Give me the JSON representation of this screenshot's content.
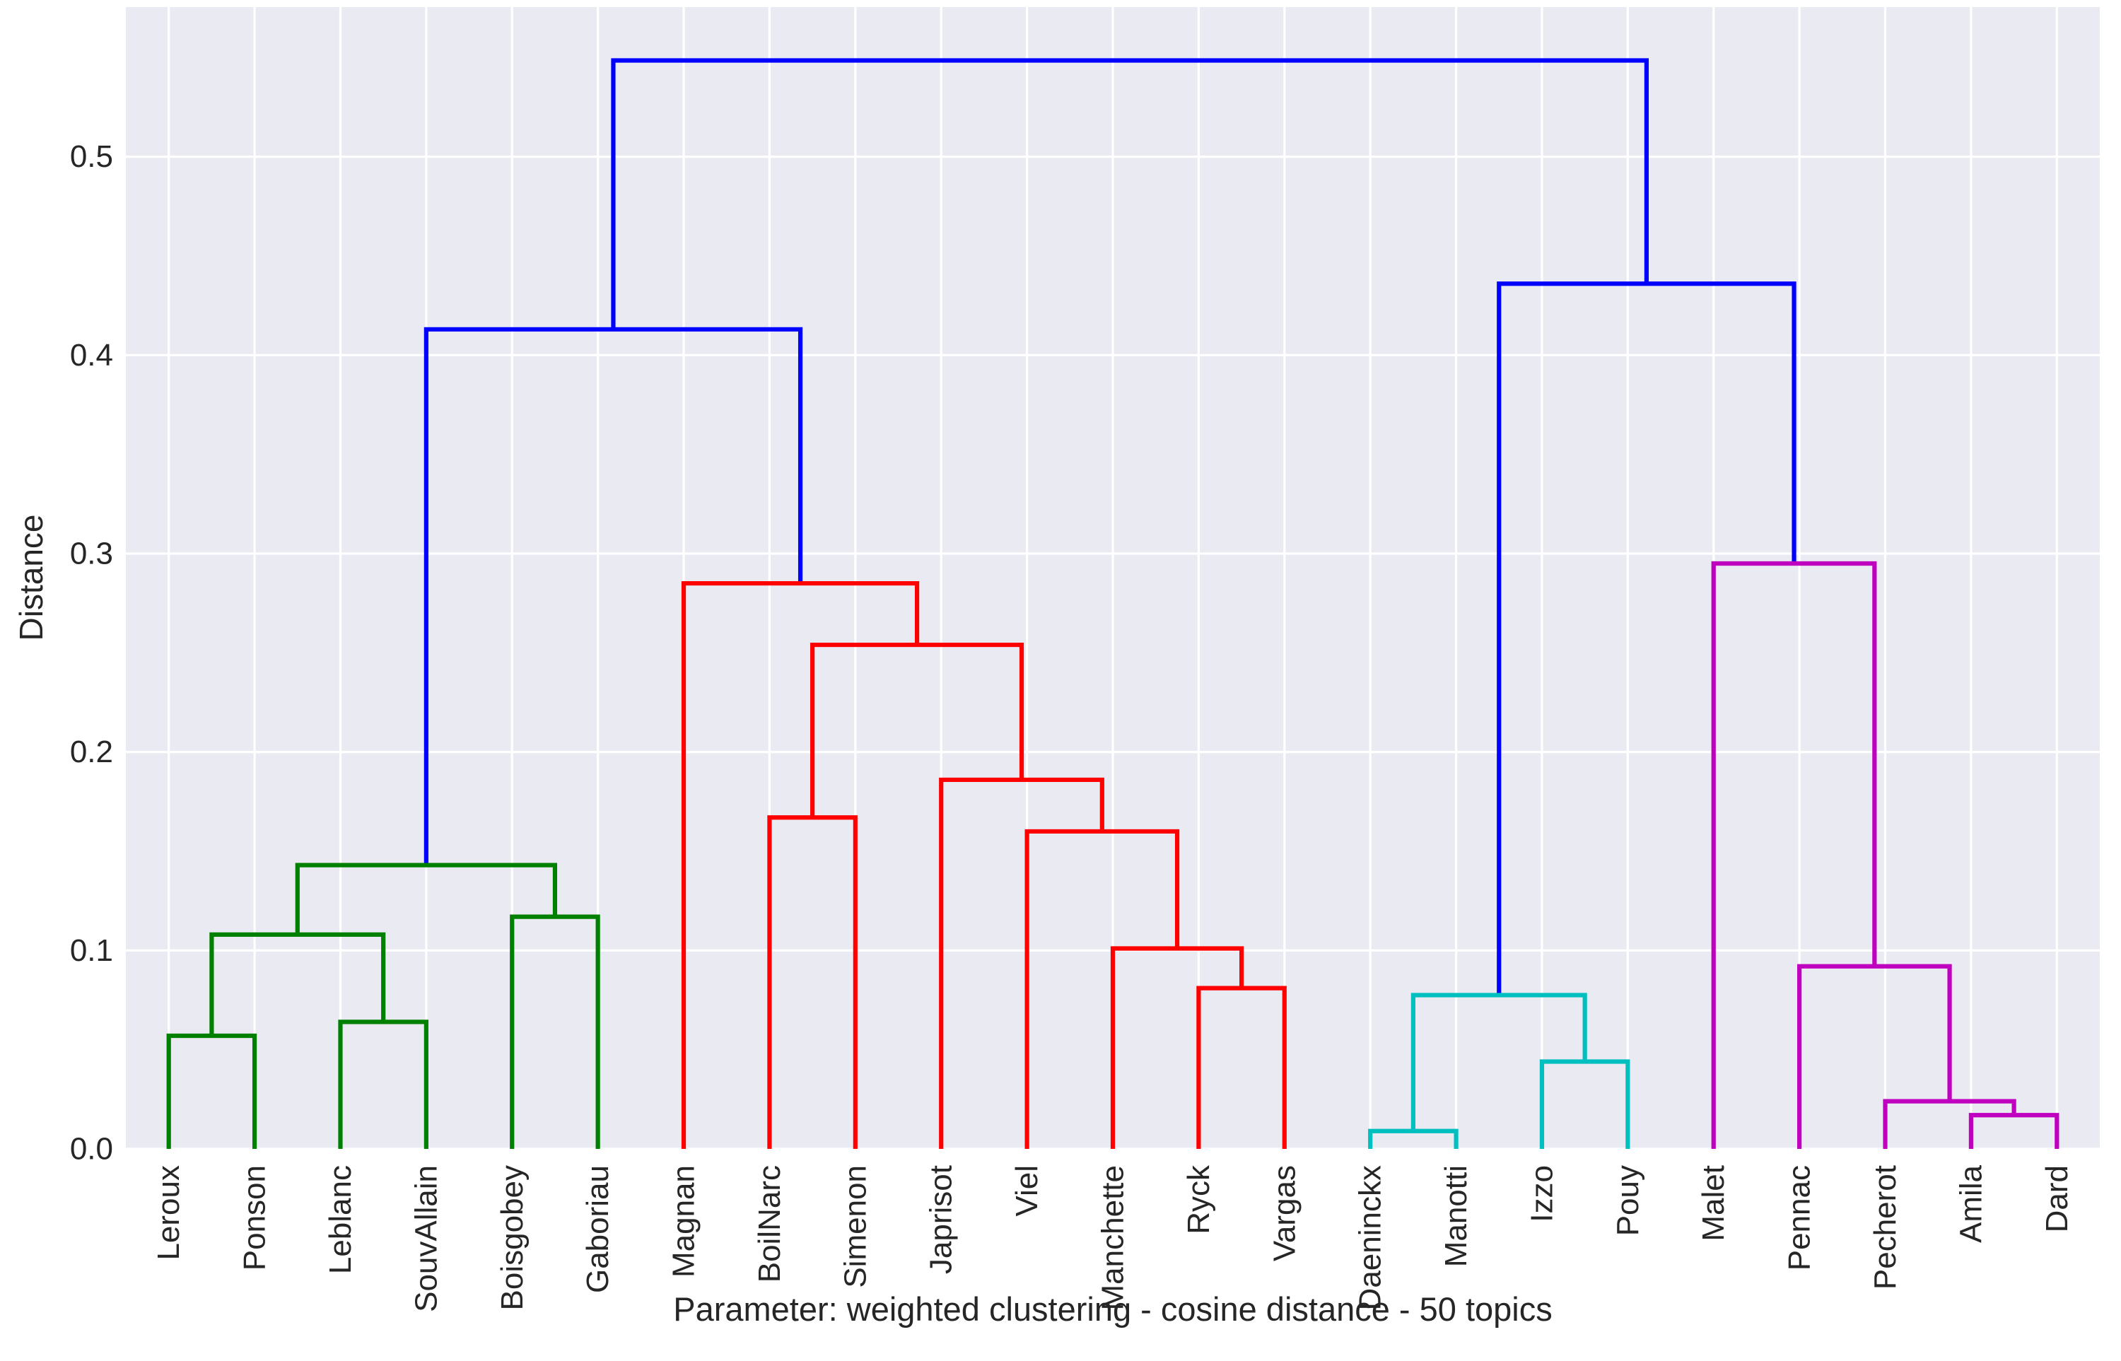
{
  "figure": {
    "plot_bg": "#eaeaf2",
    "grid_color": "#ffffff",
    "text_color": "#262626",
    "line_width": 6.2,
    "grid_width": 3.2,
    "palette": {
      "blue": "#0000ff",
      "green": "#008000",
      "red": "#ff0000",
      "cyan": "#00bfbf",
      "magenta": "#bf00bf"
    }
  },
  "chart_data": {
    "type": "dendrogram",
    "xlabel": "Parameter: weighted clustering - cosine distance - 50 topics",
    "ylabel": "Distance",
    "y_ticks": [
      0.0,
      0.1,
      0.2,
      0.3,
      0.4,
      0.5
    ],
    "ylim": [
      0,
      0.5754
    ],
    "grid": true,
    "leaves": [
      "Leroux",
      "Ponson",
      "Leblanc",
      "SouvAllain",
      "Boisgobey",
      "Gaboriau",
      "Magnan",
      "BoilNarc",
      "Simenon",
      "Japrisot",
      "Viel",
      "Manchette",
      "Ryck",
      "Vargas",
      "Daeninckx",
      "Manotti",
      "Izzo",
      "Pouy",
      "Malet",
      "Pennac",
      "Pecherot",
      "Amila",
      "Dard"
    ],
    "clusters": [
      {
        "color_name": "green",
        "members": [
          "Leroux",
          "Ponson",
          "Leblanc",
          "SouvAllain",
          "Boisgobey",
          "Gaboriau"
        ]
      },
      {
        "color_name": "red",
        "members": [
          "Magnan",
          "BoilNarc",
          "Simenon",
          "Japrisot",
          "Viel",
          "Manchette",
          "Ryck",
          "Vargas"
        ]
      },
      {
        "color_name": "cyan",
        "members": [
          "Daeninckx",
          "Manotti",
          "Izzo",
          "Pouy"
        ]
      },
      {
        "color_name": "magenta",
        "members": [
          "Malet",
          "Pennac",
          "Pecherot",
          "Amila",
          "Dard"
        ]
      }
    ],
    "tree": {
      "h": 0.5485,
      "c": "blue",
      "children": [
        {
          "h": 0.413,
          "c": "blue",
          "children": [
            {
              "h": 0.143,
              "c": "green",
              "children": [
                {
                  "h": 0.108,
                  "c": "green",
                  "children": [
                    {
                      "h": 0.057,
                      "c": "green",
                      "children": [
                        {
                          "leaf": "Leroux"
                        },
                        {
                          "leaf": "Ponson"
                        }
                      ]
                    },
                    {
                      "h": 0.064,
                      "c": "green",
                      "children": [
                        {
                          "leaf": "Leblanc"
                        },
                        {
                          "leaf": "SouvAllain"
                        }
                      ]
                    }
                  ]
                },
                {
                  "h": 0.117,
                  "c": "green",
                  "children": [
                    {
                      "leaf": "Boisgobey"
                    },
                    {
                      "leaf": "Gaboriau"
                    }
                  ]
                }
              ]
            },
            {
              "h": 0.285,
              "c": "red",
              "children": [
                {
                  "leaf": "Magnan"
                },
                {
                  "h": 0.254,
                  "c": "red",
                  "children": [
                    {
                      "h": 0.167,
                      "c": "red",
                      "children": [
                        {
                          "leaf": "BoilNarc"
                        },
                        {
                          "leaf": "Simenon"
                        }
                      ]
                    },
                    {
                      "h": 0.186,
                      "c": "red",
                      "children": [
                        {
                          "leaf": "Japrisot"
                        },
                        {
                          "h": 0.16,
                          "c": "red",
                          "children": [
                            {
                              "leaf": "Viel"
                            },
                            {
                              "h": 0.101,
                              "c": "red",
                              "children": [
                                {
                                  "leaf": "Manchette"
                                },
                                {
                                  "h": 0.081,
                                  "c": "red",
                                  "children": [
                                    {
                                      "leaf": "Ryck"
                                    },
                                    {
                                      "leaf": "Vargas"
                                    }
                                  ]
                                }
                              ]
                            }
                          ]
                        }
                      ]
                    }
                  ]
                }
              ]
            }
          ]
        },
        {
          "h": 0.436,
          "c": "blue",
          "children": [
            {
              "h": 0.0775,
              "c": "cyan",
              "children": [
                {
                  "h": 0.009,
                  "c": "cyan",
                  "children": [
                    {
                      "leaf": "Daeninckx"
                    },
                    {
                      "leaf": "Manotti"
                    }
                  ]
                },
                {
                  "h": 0.044,
                  "c": "cyan",
                  "children": [
                    {
                      "leaf": "Izzo"
                    },
                    {
                      "leaf": "Pouy"
                    }
                  ]
                }
              ]
            },
            {
              "h": 0.295,
              "c": "magenta",
              "children": [
                {
                  "leaf": "Malet"
                },
                {
                  "h": 0.092,
                  "c": "magenta",
                  "children": [
                    {
                      "leaf": "Pennac"
                    },
                    {
                      "h": 0.024,
                      "c": "magenta",
                      "children": [
                        {
                          "leaf": "Pecherot"
                        },
                        {
                          "h": 0.017,
                          "c": "magenta",
                          "children": [
                            {
                              "leaf": "Amila"
                            },
                            {
                              "leaf": "Dard"
                            }
                          ]
                        }
                      ]
                    }
                  ]
                }
              ]
            }
          ]
        }
      ]
    }
  }
}
